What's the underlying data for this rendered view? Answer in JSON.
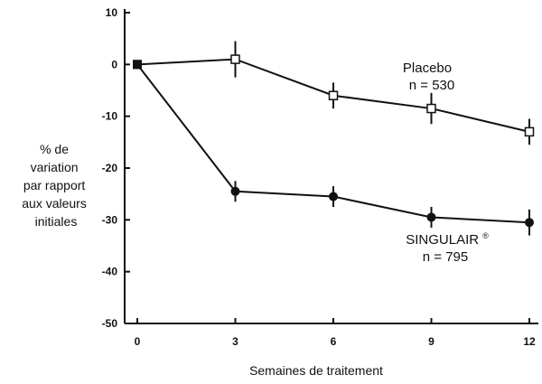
{
  "chart_data": {
    "type": "line",
    "xlabel": "Semaines de traitement",
    "ylabel_lines": [
      "% de",
      "variation",
      "par rapport",
      "aux valeurs",
      "initiales"
    ],
    "x_ticks": [
      0,
      3,
      6,
      9,
      12
    ],
    "y_ticks": [
      10,
      0,
      -10,
      -20,
      -30,
      -40,
      -50
    ],
    "xlim": [
      0,
      12
    ],
    "ylim": [
      -50,
      10
    ],
    "grid": false,
    "series": [
      {
        "name": "Placebo",
        "n_label": "n = 530",
        "marker": "open-square",
        "x": [
          0,
          3,
          6,
          9,
          12
        ],
        "y": [
          0,
          1,
          -6,
          -8.5,
          -13
        ],
        "err": [
          0,
          3.5,
          2.5,
          3,
          2.5
        ]
      },
      {
        "name": "SINGULAIR",
        "name_suffix": "®",
        "n_label": "n = 795",
        "marker": "filled-circle",
        "x": [
          0,
          3,
          6,
          9,
          12
        ],
        "y": [
          0,
          -24.5,
          -25.5,
          -29.5,
          -30.5
        ],
        "err": [
          0,
          2,
          2,
          2,
          2.5
        ]
      }
    ]
  }
}
